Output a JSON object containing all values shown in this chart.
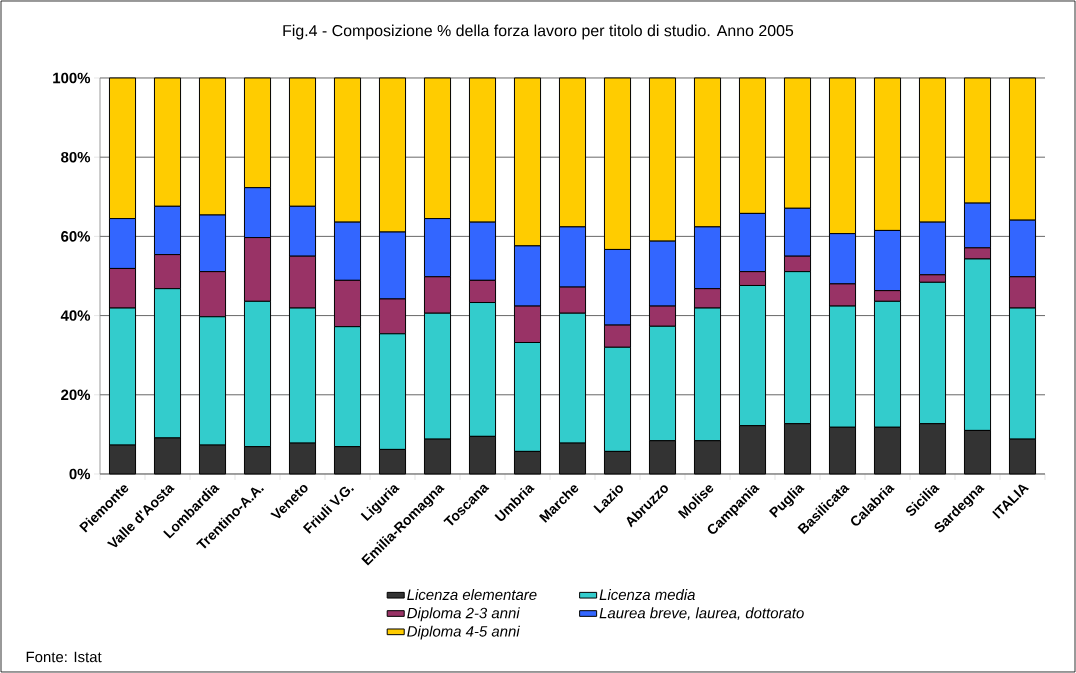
{
  "chart_data": {
    "type": "bar",
    "stacked": true,
    "title": "Fig.4 - Composizione % della forza lavoro per titolo di studio. Anno 2005",
    "categories": [
      "Piemonte",
      "Valle d'Aosta",
      "Lombardia",
      "Trentino-A.A.",
      "Veneto",
      "Friuli V.G.",
      "Liguria",
      "Emilia-Romagna",
      "Toscana",
      "Umbria",
      "Marche",
      "Lazio",
      "Abruzzo",
      "Molise",
      "Campania",
      "Puglia",
      "Basilicata",
      "Calabria",
      "Sicilia",
      "Sardegna",
      "ITALIA"
    ],
    "series": [
      {
        "name": "Licenza elementare",
        "color": "#333333",
        "values": [
          7.3,
          9.1,
          7.3,
          6.9,
          7.8,
          6.9,
          6.2,
          8.8,
          9.5,
          5.7,
          7.8,
          5.7,
          8.4,
          8.4,
          12.2,
          12.7,
          11.8,
          11.8,
          12.7,
          11.0,
          8.8
        ]
      },
      {
        "name": "Licenza media",
        "color": "#33cccc",
        "values": [
          34.6,
          37.7,
          32.4,
          36.7,
          34.1,
          30.3,
          29.2,
          31.8,
          33.8,
          27.5,
          32.8,
          26.3,
          28.9,
          33.5,
          35.4,
          38.4,
          30.6,
          31.8,
          35.7,
          43.3,
          33.1
        ]
      },
      {
        "name": "Diploma 2-3 anni",
        "color": "#993366",
        "values": [
          10.0,
          8.6,
          11.4,
          16.1,
          13.1,
          11.7,
          8.8,
          9.2,
          5.6,
          9.2,
          6.6,
          5.6,
          5.1,
          4.9,
          3.5,
          3.9,
          5.6,
          2.7,
          1.9,
          2.8,
          7.9
        ]
      },
      {
        "name": "Laurea breve, laurea, dottorato",
        "color": "#3366ff",
        "values": [
          12.6,
          12.2,
          14.3,
          12.6,
          12.6,
          14.7,
          16.9,
          14.7,
          14.7,
          15.2,
          15.2,
          19.1,
          16.4,
          15.6,
          14.7,
          12.1,
          12.7,
          15.2,
          13.3,
          11.3,
          14.3
        ]
      },
      {
        "name": "Diploma 4-5 anni",
        "color": "#ffcc00",
        "values": [
          35.5,
          32.4,
          34.6,
          27.7,
          32.4,
          36.4,
          38.9,
          35.5,
          36.4,
          42.4,
          37.6,
          43.3,
          41.2,
          37.6,
          34.2,
          32.9,
          39.3,
          38.5,
          36.4,
          31.6,
          35.9
        ]
      }
    ],
    "ylim": [
      0,
      100
    ],
    "yticks": [
      {
        "value": 0,
        "label": "0%"
      },
      {
        "value": 20,
        "label": "20%"
      },
      {
        "value": 40,
        "label": "40%"
      },
      {
        "value": 60,
        "label": "60%"
      },
      {
        "value": 80,
        "label": "80%"
      },
      {
        "value": 100,
        "label": "100%"
      }
    ],
    "grid": "y",
    "legend": "bottom",
    "annotations": [
      "Fonte: Istat"
    ]
  }
}
